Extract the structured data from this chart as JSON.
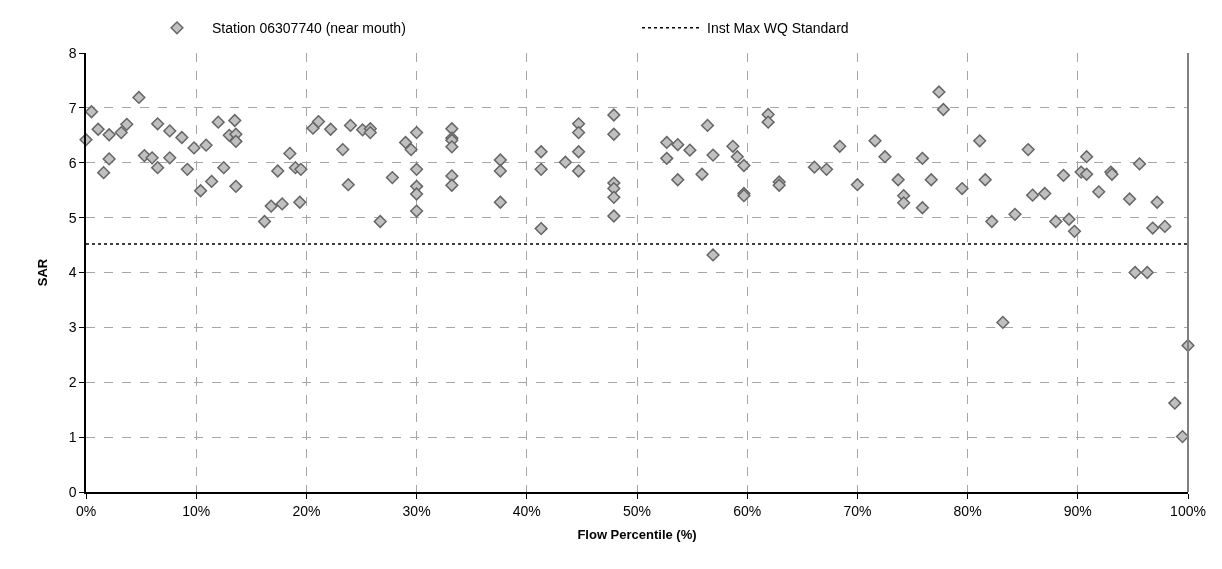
{
  "chart_data": {
    "type": "scatter",
    "xlabel": "Flow Percentile (%)",
    "ylabel": "SAR",
    "marker": "diamond",
    "grid": true,
    "legend": "top",
    "xlim": [
      0,
      100
    ],
    "ylim": [
      0,
      8
    ],
    "xticks": [
      {
        "value": 0,
        "label": "0%"
      },
      {
        "value": 10,
        "label": "10%"
      },
      {
        "value": 20,
        "label": "20%"
      },
      {
        "value": 30,
        "label": "30%"
      },
      {
        "value": 40,
        "label": "40%"
      },
      {
        "value": 50,
        "label": "50%"
      },
      {
        "value": 60,
        "label": "60%"
      },
      {
        "value": 70,
        "label": "70%"
      },
      {
        "value": 80,
        "label": "80%"
      },
      {
        "value": 90,
        "label": "90%"
      },
      {
        "value": 100,
        "label": "100%"
      }
    ],
    "yticks": [
      0,
      1,
      2,
      3,
      4,
      5,
      6,
      7,
      8
    ],
    "ref_lines": [
      {
        "axis": "y",
        "value": 4.52,
        "label": "Inst Max WQ Standard",
        "color": "#000000",
        "line_style": "dotted"
      }
    ],
    "series": [
      {
        "name": "Station 06307740 (near mouth)",
        "color": "#c0c0c0",
        "x": [
          0,
          0.5,
          1.1,
          1.6,
          2.1,
          2.1,
          3.2,
          3.7,
          4.8,
          5.3,
          6.0,
          6.5,
          6.5,
          7.6,
          7.6,
          8.7,
          9.2,
          9.8,
          10.4,
          10.9,
          11.4,
          12.0,
          12.5,
          13.0,
          13.5,
          13.6,
          13.6,
          13.6,
          16.2,
          16.8,
          17.4,
          17.8,
          18.5,
          19.0,
          19.5,
          19.4,
          20.6,
          21.1,
          22.2,
          23.3,
          23.8,
          24.0,
          25.1,
          25.8,
          25.8,
          26.7,
          27.8,
          29.0,
          29.5,
          30.0,
          30.0,
          30.0,
          30.0,
          30.0,
          33.2,
          33.2,
          33.2,
          33.2,
          33.2,
          33.2,
          37.6,
          37.6,
          37.6,
          41.3,
          41.3,
          41.3,
          43.5,
          44.7,
          44.7,
          44.7,
          44.7,
          47.9,
          47.9,
          47.9,
          47.9,
          47.9,
          47.9,
          52.7,
          52.7,
          53.7,
          53.7,
          54.8,
          56.4,
          55.9,
          56.9,
          56.9,
          58.7,
          59.1,
          59.7,
          59.7,
          59.7,
          61.9,
          61.9,
          62.9,
          62.9,
          66.1,
          67.2,
          68.4,
          70.0,
          71.6,
          72.5,
          73.7,
          74.2,
          74.2,
          75.9,
          75.9,
          76.7,
          77.4,
          77.8,
          79.5,
          81.1,
          81.6,
          82.2,
          83.2,
          84.3,
          85.5,
          85.9,
          87.0,
          88.0,
          88.7,
          89.2,
          89.7,
          90.3,
          90.8,
          90.8,
          91.9,
          93.0,
          93.1,
          94.7,
          95.2,
          95.6,
          96.3,
          96.8,
          97.2,
          97.9,
          98.8,
          99.5,
          100.0
        ],
        "values": [
          6.42,
          6.93,
          6.61,
          5.82,
          6.51,
          6.07,
          6.55,
          6.7,
          7.19,
          6.13,
          6.09,
          5.91,
          6.71,
          6.09,
          6.58,
          6.46,
          5.88,
          6.27,
          5.49,
          6.32,
          5.66,
          6.74,
          5.91,
          6.5,
          6.77,
          6.52,
          6.39,
          5.57,
          4.93,
          5.21,
          5.85,
          5.25,
          6.17,
          5.91,
          5.88,
          5.28,
          6.63,
          6.75,
          6.61,
          6.24,
          5.6,
          6.68,
          6.6,
          6.62,
          6.55,
          4.93,
          5.73,
          6.37,
          6.24,
          6.55,
          5.88,
          5.57,
          5.43,
          5.12,
          6.62,
          6.45,
          6.41,
          6.29,
          5.76,
          5.59,
          6.05,
          5.85,
          5.28,
          6.2,
          5.88,
          4.8,
          6.01,
          6.71,
          6.55,
          6.2,
          5.85,
          6.87,
          6.52,
          5.63,
          5.53,
          5.37,
          5.03,
          6.37,
          6.08,
          6.33,
          5.69,
          6.23,
          6.68,
          5.79,
          6.14,
          4.32,
          6.3,
          6.11,
          5.95,
          5.44,
          5.4,
          6.88,
          6.74,
          5.65,
          5.59,
          5.92,
          5.88,
          6.3,
          5.6,
          6.4,
          6.11,
          5.69,
          5.4,
          5.27,
          6.08,
          5.18,
          5.69,
          7.29,
          6.97,
          5.53,
          6.4,
          5.69,
          4.93,
          3.09,
          5.06,
          6.24,
          5.41,
          5.44,
          4.93,
          5.77,
          4.97,
          4.75,
          5.83,
          6.11,
          5.79,
          5.47,
          5.83,
          5.79,
          5.34,
          4.0,
          5.98,
          4.0,
          4.81,
          5.28,
          4.84,
          1.62,
          1.01,
          2.67
        ]
      }
    ]
  }
}
